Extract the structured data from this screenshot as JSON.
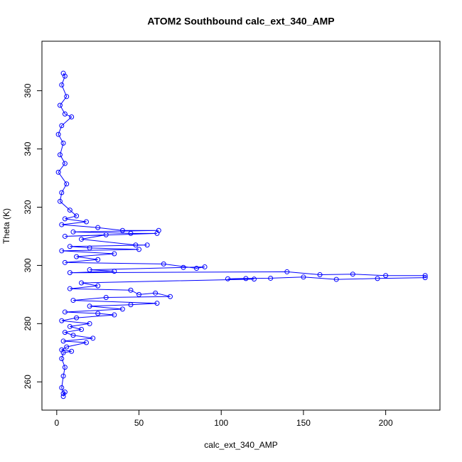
{
  "chart_data": {
    "type": "line",
    "title": "ATOM2 Southbound calc_ext_340_AMP",
    "x_label": "calc_ext_340_AMP",
    "y_label": "Theta (K)",
    "color": "#0000ff",
    "xlim": [
      -9,
      233
    ],
    "ylim": [
      250.3,
      377
    ],
    "xticks": [
      0,
      50,
      100,
      150,
      200
    ],
    "yticks": [
      260,
      280,
      300,
      320,
      340,
      360
    ],
    "x": [
      4,
      5,
      3,
      6,
      2,
      5,
      9,
      3,
      1,
      4,
      2,
      5,
      1,
      6,
      3,
      2,
      8,
      12,
      5,
      18,
      3,
      25,
      40,
      62,
      10,
      45,
      61,
      5,
      30,
      15,
      48,
      55,
      8,
      20,
      50,
      3,
      35,
      12,
      25,
      5,
      65,
      85,
      90,
      77,
      20,
      35,
      8,
      140,
      160,
      180,
      200,
      224,
      224,
      195,
      170,
      150,
      130,
      115,
      104,
      120,
      15,
      25,
      8,
      45,
      50,
      60,
      69,
      30,
      10,
      61,
      45,
      20,
      40,
      5,
      25,
      35,
      12,
      3,
      20,
      8,
      15,
      5,
      10,
      22,
      4,
      18,
      6,
      3,
      9,
      4,
      3,
      5,
      4,
      3,
      4,
      5,
      4
    ],
    "values": [
      366,
      365,
      362,
      358,
      355,
      352,
      351,
      348,
      345,
      342,
      338,
      335,
      332,
      328,
      325,
      322,
      319,
      317,
      316,
      315,
      314,
      313,
      312,
      312,
      311.5,
      311,
      311,
      310,
      310.5,
      309,
      307,
      307,
      306.5,
      306,
      305.5,
      305,
      304,
      303,
      302,
      301,
      300.5,
      299,
      299.5,
      299.3,
      298.5,
      298,
      297.5,
      297.8,
      296.8,
      297,
      296.5,
      296.5,
      295.8,
      295.5,
      295.2,
      296,
      295.6,
      295.5,
      295.4,
      295.3,
      294,
      293,
      292,
      291.5,
      290,
      290.5,
      289.3,
      289,
      288,
      287,
      286.5,
      286,
      285,
      284,
      283.5,
      283,
      282,
      281,
      280,
      279,
      278,
      277,
      276,
      275,
      274,
      273.5,
      272,
      271,
      270.5,
      270,
      268,
      265,
      262,
      258,
      256,
      256.5,
      255
    ]
  }
}
